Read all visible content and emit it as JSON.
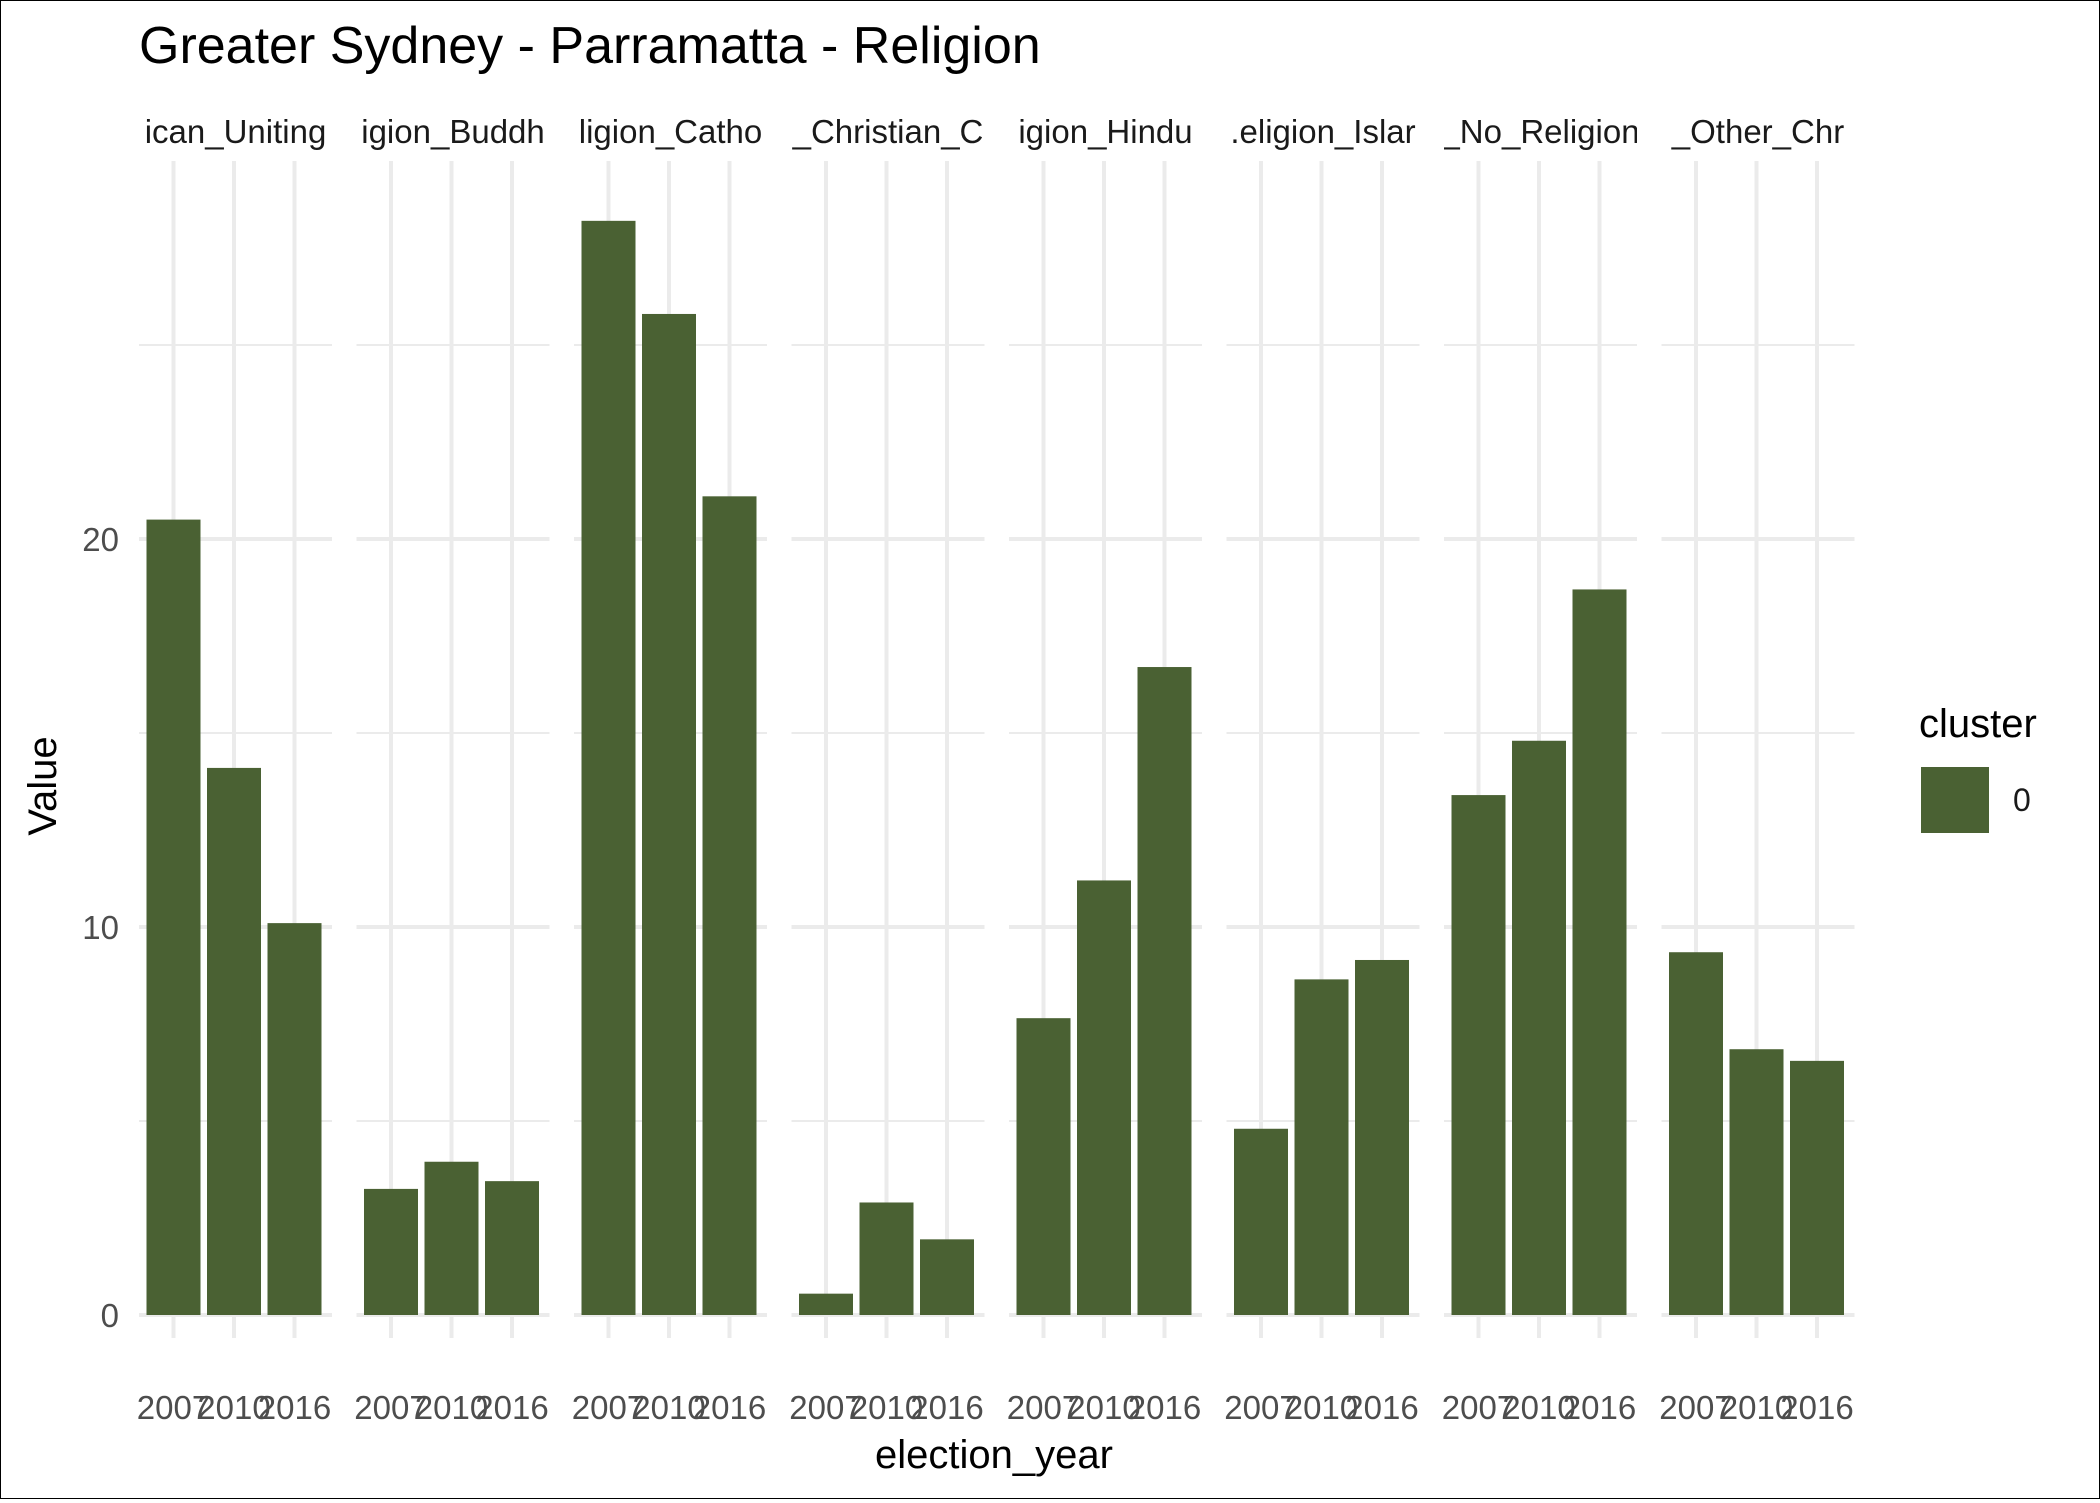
{
  "chart_data": {
    "type": "bar",
    "title": "Greater Sydney - Parramatta - Religion",
    "xlabel": "election_year",
    "ylabel": "Value",
    "ylim": [
      0,
      28.5
    ],
    "y_ticks": [
      0,
      10,
      20
    ],
    "grid": true,
    "x_categories": [
      "2007",
      "2010",
      "2016"
    ],
    "facet_labels": [
      "ican_Uniting",
      "igion_Buddh",
      "ligion_Catho",
      "_Christian_C",
      "igion_Hindu",
      ".eligion_Islar",
      "_No_Religion",
      "_Other_Chr"
    ],
    "legend": {
      "title": "cluster",
      "placement": "right",
      "entries": [
        "0"
      ]
    },
    "bar_color": "#4a6133",
    "facets": [
      {
        "label": "ican_Uniting",
        "values": [
          20.5,
          14.1,
          10.1
        ]
      },
      {
        "label": "igion_Buddh",
        "values": [
          3.25,
          3.95,
          3.45
        ]
      },
      {
        "label": "ligion_Catho",
        "values": [
          28.2,
          25.8,
          21.1
        ]
      },
      {
        "label": "_Christian_C",
        "values": [
          0.55,
          2.9,
          1.95
        ]
      },
      {
        "label": "igion_Hindu",
        "values": [
          7.65,
          11.2,
          16.7
        ]
      },
      {
        "label": ".eligion_Islar",
        "values": [
          4.8,
          8.65,
          9.15
        ]
      },
      {
        "label": "_No_Religion",
        "values": [
          13.4,
          14.8,
          18.7
        ]
      },
      {
        "label": "_Other_Chr",
        "values": [
          9.35,
          6.85,
          6.55
        ]
      }
    ]
  }
}
